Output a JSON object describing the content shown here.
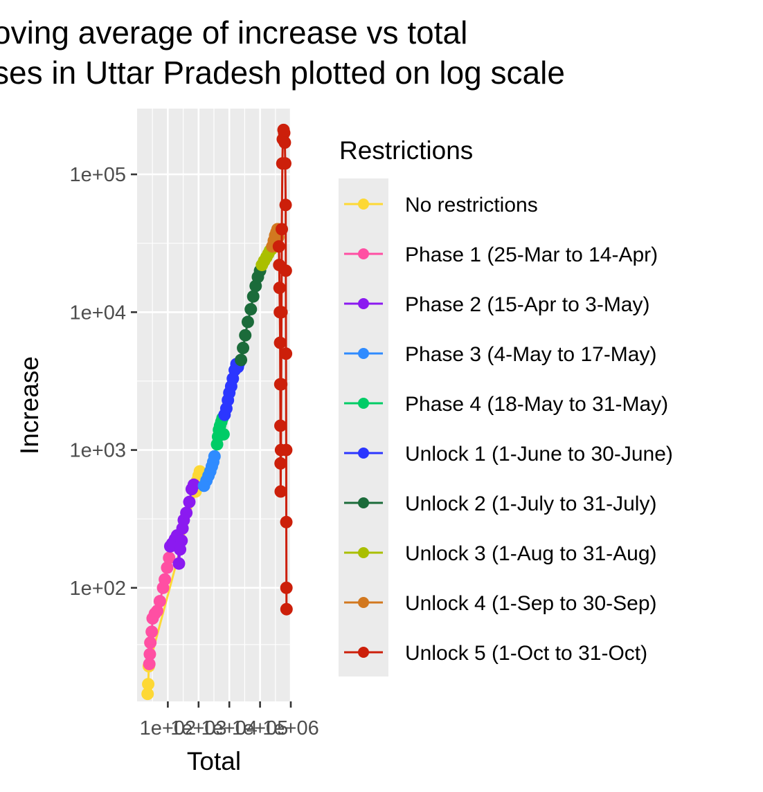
{
  "chart_data": {
    "type": "line",
    "title_lines": [
      "oving average of increase vs total",
      "ses in Uttar Pradesh plotted on log scale"
    ],
    "xlabel": "Total",
    "ylabel": "Increase",
    "x_scale": "log",
    "y_scale": "log",
    "xlim": [
      10,
      1000000
    ],
    "ylim": [
      15,
      300000
    ],
    "x_ticks": [
      {
        "value": 100,
        "label": "1e+02"
      },
      {
        "value": 1000,
        "label": "1e+03"
      },
      {
        "value": 10000,
        "label": "1e+04"
      },
      {
        "value": 100000,
        "label": "1e+05"
      },
      {
        "value": 1000000,
        "label": "1e+06"
      }
    ],
    "y_ticks": [
      {
        "value": 100,
        "label": "1e+02"
      },
      {
        "value": 1000,
        "label": "1e+03"
      },
      {
        "value": 10000,
        "label": "1e+04"
      },
      {
        "value": 100000,
        "label": "1e+05"
      }
    ],
    "grid": true,
    "legend_title": "Restrictions",
    "legend_position": "right",
    "series": [
      {
        "name": "No restrictions",
        "color": "#FDD835",
        "points": [
          [
            22,
            17
          ],
          [
            23,
            20
          ],
          [
            24,
            27
          ],
          [
            800,
            500
          ],
          [
            900,
            600
          ],
          [
            1000,
            650
          ],
          [
            1100,
            700
          ]
        ]
      },
      {
        "name": "Phase 1 (25-Mar to 14-Apr)",
        "color": "#FF4FA3",
        "points": [
          [
            25,
            28
          ],
          [
            26,
            33
          ],
          [
            27,
            40
          ],
          [
            30,
            48
          ],
          [
            32,
            60
          ],
          [
            38,
            65
          ],
          [
            45,
            68
          ],
          [
            55,
            80
          ],
          [
            70,
            100
          ],
          [
            80,
            115
          ],
          [
            95,
            140
          ],
          [
            110,
            165
          ]
        ]
      },
      {
        "name": "Phase 2 (15-Apr to 3-May)",
        "color": "#8B1AF0",
        "points": [
          [
            120,
            200
          ],
          [
            140,
            210
          ],
          [
            170,
            225
          ],
          [
            200,
            240
          ],
          [
            230,
            150
          ],
          [
            250,
            190
          ],
          [
            280,
            220
          ],
          [
            300,
            270
          ],
          [
            330,
            310
          ],
          [
            400,
            350
          ],
          [
            500,
            420
          ],
          [
            600,
            520
          ],
          [
            700,
            560
          ]
        ]
      },
      {
        "name": "Phase 3 (4-May to 17-May)",
        "color": "#2F8BFF",
        "points": [
          [
            1500,
            550
          ],
          [
            1800,
            600
          ],
          [
            2100,
            650
          ],
          [
            2400,
            700
          ],
          [
            2700,
            760
          ],
          [
            3000,
            820
          ],
          [
            3300,
            900
          ]
        ]
      },
      {
        "name": "Phase 4 (18-May to 31-May)",
        "color": "#00CC66",
        "points": [
          [
            4000,
            1100
          ],
          [
            4300,
            1250
          ],
          [
            4600,
            1400
          ],
          [
            5000,
            1500
          ],
          [
            5500,
            1600
          ],
          [
            6000,
            1700
          ],
          [
            6500,
            1300
          ]
        ]
      },
      {
        "name": "Unlock 1 (1-June to 30-June)",
        "color": "#2B36FF",
        "points": [
          [
            7000,
            1800
          ],
          [
            8000,
            2000
          ],
          [
            9000,
            2300
          ],
          [
            10000,
            2600
          ],
          [
            11500,
            2900
          ],
          [
            13000,
            3300
          ],
          [
            15000,
            3800
          ],
          [
            17000,
            4200
          ],
          [
            19000,
            4000
          ],
          [
            21000,
            4300
          ]
        ]
      },
      {
        "name": "Unlock 2 (1-July to 31-July)",
        "color": "#1B6B3A",
        "points": [
          [
            24000,
            4500
          ],
          [
            28000,
            5500
          ],
          [
            33000,
            6800
          ],
          [
            40000,
            8500
          ],
          [
            50000,
            10500
          ],
          [
            60000,
            13000
          ],
          [
            72000,
            15500
          ],
          [
            85000,
            18000
          ],
          [
            100000,
            20000
          ]
        ]
      },
      {
        "name": "Unlock 3 (1-Aug to 31-Aug)",
        "color": "#AABF00",
        "points": [
          [
            115000,
            22000
          ],
          [
            135000,
            23500
          ],
          [
            160000,
            25000
          ],
          [
            185000,
            26500
          ],
          [
            210000,
            28000
          ],
          [
            230000,
            28500
          ]
        ]
      },
      {
        "name": "Unlock 4 (1-Sep to 30-Sep)",
        "color": "#D2781F",
        "points": [
          [
            250000,
            30000
          ],
          [
            280000,
            33000
          ],
          [
            310000,
            36000
          ],
          [
            340000,
            38000
          ],
          [
            370000,
            40000
          ],
          [
            390000,
            35000
          ]
        ]
      },
      {
        "name": "Unlock 5 (1-Oct to 31-Oct)",
        "color": "#CC1F0A",
        "points": [
          [
            410000,
            30000
          ],
          [
            420000,
            22000
          ],
          [
            430000,
            15000
          ],
          [
            440000,
            10000
          ],
          [
            450000,
            6000
          ],
          [
            455000,
            3000
          ],
          [
            460000,
            1500
          ],
          [
            465000,
            800
          ],
          [
            470000,
            500
          ],
          [
            480000,
            1000
          ],
          [
            490000,
            3000
          ],
          [
            500000,
            10000
          ],
          [
            510000,
            40000
          ],
          [
            530000,
            120000
          ],
          [
            550000,
            180000
          ],
          [
            580000,
            210000
          ],
          [
            610000,
            200000
          ],
          [
            640000,
            170000
          ],
          [
            660000,
            120000
          ],
          [
            680000,
            60000
          ],
          [
            690000,
            20000
          ],
          [
            700000,
            5000
          ],
          [
            710000,
            1000
          ],
          [
            715000,
            300
          ],
          [
            720000,
            100
          ],
          [
            725000,
            70
          ]
        ]
      }
    ]
  }
}
